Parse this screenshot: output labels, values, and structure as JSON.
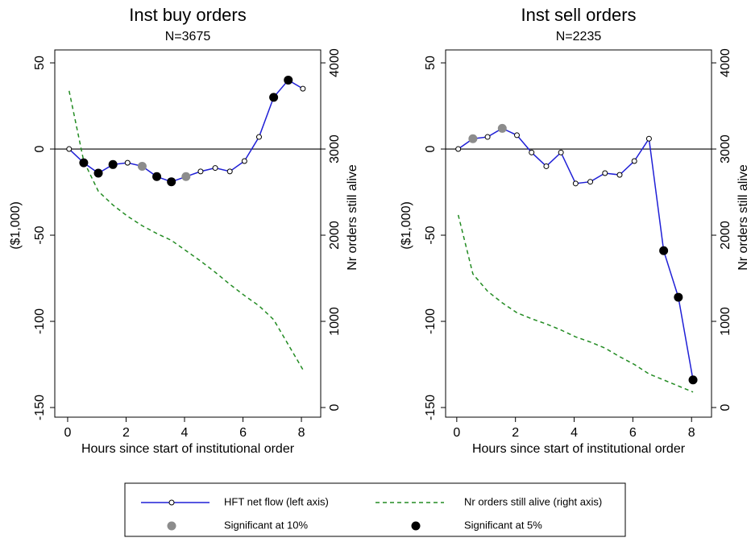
{
  "chart_data": [
    {
      "type": "line",
      "title": "Inst buy orders",
      "subtitle": "N=3675",
      "x_label": "Hours since start of institutional order",
      "y_label": "($1,000)",
      "y2_label": "Nr orders still alive",
      "x": [
        0.05,
        0.55,
        1.05,
        1.55,
        2.05,
        2.55,
        3.05,
        3.55,
        4.05,
        4.55,
        5.05,
        5.55,
        6.05,
        6.55,
        7.05,
        7.55,
        8.05
      ],
      "series": [
        {
          "name": "HFT net flow (left axis)",
          "color": "#1f1fd6",
          "marker": "hollow",
          "values": [
            0,
            -8,
            -14,
            -9,
            -8,
            -10,
            -16,
            -19,
            -16,
            -13,
            -11,
            -13,
            -7,
            7,
            30,
            40,
            35
          ]
        },
        {
          "name": "Nr orders still alive (right axis)",
          "color": "#228b22",
          "dashed": true,
          "axis": "y2",
          "values": [
            3675,
            2860,
            2510,
            2350,
            2220,
            2110,
            2020,
            1940,
            1820,
            1700,
            1570,
            1430,
            1300,
            1180,
            1020,
            730,
            440
          ]
        },
        {
          "name": "Significant at 10%",
          "color": "#8c8c8c",
          "marker": "dot",
          "values": [
            null,
            null,
            null,
            null,
            null,
            -10,
            null,
            null,
            -16,
            null,
            null,
            null,
            null,
            null,
            null,
            null,
            null
          ]
        },
        {
          "name": "Significant at 5%",
          "color": "#000000",
          "marker": "dot",
          "values": [
            null,
            -8,
            -14,
            -9,
            null,
            null,
            -16,
            -19,
            null,
            null,
            null,
            null,
            null,
            null,
            30,
            40,
            null
          ]
        }
      ],
      "xlim": [
        -0.44,
        8.66
      ],
      "xticks": [
        0,
        2,
        4,
        6,
        8
      ],
      "ylim": [
        -155.6,
        57.5
      ],
      "yticks": [
        -150,
        -100,
        -50,
        0,
        50
      ],
      "y2lim": [
        -112,
        4150
      ],
      "y2ticks": [
        0,
        1000,
        2000,
        3000,
        4000
      ],
      "reference_line": 0,
      "legend": "bottom"
    },
    {
      "type": "line",
      "title": "Inst sell orders",
      "subtitle": "N=2235",
      "x_label": "Hours since start of institutional order",
      "y_label": "($1,000)",
      "y2_label": "Nr orders still alive",
      "x": [
        0.05,
        0.55,
        1.05,
        1.55,
        2.05,
        2.55,
        3.05,
        3.55,
        4.05,
        4.55,
        5.05,
        5.55,
        6.05,
        6.55,
        7.05,
        7.55,
        8.05
      ],
      "series": [
        {
          "color": "#1f1fd6",
          "marker": "hollow",
          "values": [
            0,
            6,
            7,
            12,
            8,
            -2,
            -10,
            -2,
            -20,
            -19,
            -14,
            -15,
            -7,
            6,
            -59,
            -86,
            -134
          ]
        },
        {
          "color": "#228b22",
          "dashed": true,
          "axis": "y2",
          "values": [
            2235,
            1550,
            1350,
            1215,
            1100,
            1030,
            970,
            900,
            820,
            760,
            690,
            590,
            500,
            390,
            320,
            250,
            180
          ]
        },
        {
          "color": "#8c8c8c",
          "marker": "dot",
          "values": [
            null,
            6,
            null,
            12,
            null,
            null,
            null,
            null,
            null,
            null,
            null,
            null,
            null,
            null,
            null,
            null,
            null
          ]
        },
        {
          "color": "#000000",
          "marker": "dot",
          "values": [
            null,
            null,
            null,
            null,
            null,
            null,
            null,
            null,
            null,
            null,
            null,
            null,
            null,
            null,
            -59,
            -86,
            -134
          ]
        }
      ],
      "xlim": [
        -0.38,
        8.68
      ],
      "xticks": [
        0,
        2,
        4,
        6,
        8
      ],
      "ylim": [
        -155.6,
        57.5
      ],
      "yticks": [
        -150,
        -100,
        -50,
        0,
        50
      ],
      "y2lim": [
        -112,
        4150
      ],
      "y2ticks": [
        0,
        1000,
        2000,
        3000,
        4000
      ],
      "reference_line": 0
    }
  ]
}
